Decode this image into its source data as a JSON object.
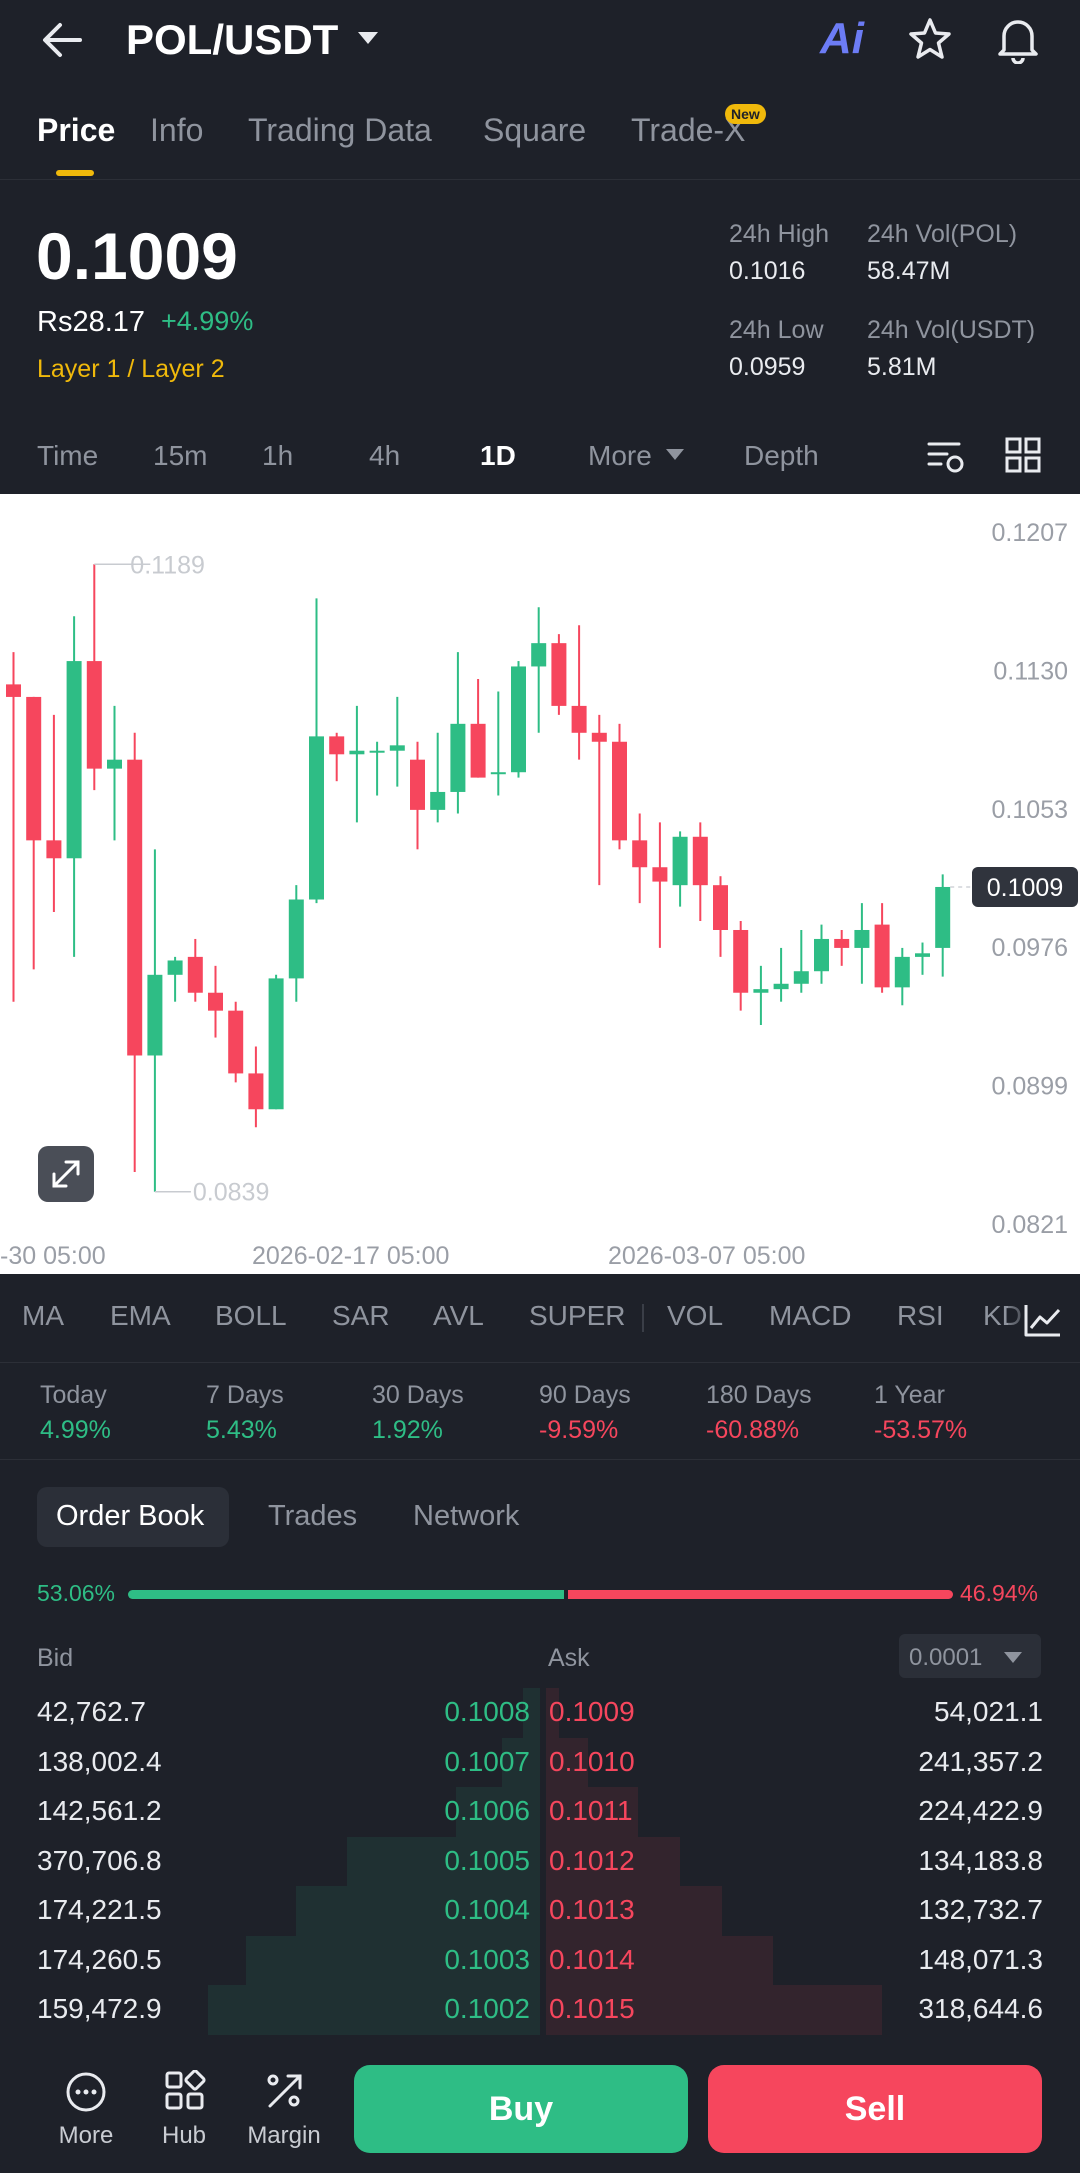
{
  "header": {
    "pair": "POL/USDT",
    "ai_label": "Ai"
  },
  "tabs": [
    {
      "label": "Price"
    },
    {
      "label": "Info"
    },
    {
      "label": "Trading Data"
    },
    {
      "label": "Square"
    },
    {
      "label": "Trade-X",
      "badge": "New"
    }
  ],
  "ticker": {
    "price": "0.1009",
    "fiat_price": "Rs28.17",
    "change": "+4.99%",
    "tag": "Layer 1 / Layer 2",
    "stats": [
      {
        "label": "24h High",
        "value": "0.1016"
      },
      {
        "label": "24h Vol(POL)",
        "value": "58.47M"
      },
      {
        "label": "24h Low",
        "value": "0.0959"
      },
      {
        "label": "24h Vol(USDT)",
        "value": "5.81M"
      }
    ]
  },
  "intervals": [
    "Time",
    "15m",
    "1h",
    "4h",
    "1D",
    "More",
    "Depth"
  ],
  "selected_interval": "1D",
  "chart_data": {
    "type": "candlestick",
    "y_ticks": [
      "0.1207",
      "0.1130",
      "0.1053",
      "0.0976",
      "0.0899",
      "0.0821"
    ],
    "y_range": [
      0.0821,
      0.1207
    ],
    "x_ticks": [
      "-30 05:00",
      "2026-02-17 05:00",
      "2026-03-07 05:00"
    ],
    "current_price_label": "0.1009",
    "max_label": "0.1189",
    "min_label": "0.0839",
    "candles": [
      {
        "o": 0.1122,
        "h": 0.114,
        "l": 0.0945,
        "c": 0.1115
      },
      {
        "o": 0.1115,
        "h": 0.1115,
        "l": 0.0963,
        "c": 0.1035
      },
      {
        "o": 0.1035,
        "h": 0.1105,
        "l": 0.0995,
        "c": 0.1025
      },
      {
        "o": 0.1025,
        "h": 0.116,
        "l": 0.097,
        "c": 0.1135
      },
      {
        "o": 0.1135,
        "h": 0.1189,
        "l": 0.1063,
        "c": 0.1075
      },
      {
        "o": 0.1075,
        "h": 0.111,
        "l": 0.1035,
        "c": 0.108
      },
      {
        "o": 0.108,
        "h": 0.1095,
        "l": 0.085,
        "c": 0.0915
      },
      {
        "o": 0.0915,
        "h": 0.103,
        "l": 0.0839,
        "c": 0.096
      },
      {
        "o": 0.096,
        "h": 0.097,
        "l": 0.0945,
        "c": 0.0968
      },
      {
        "o": 0.097,
        "h": 0.098,
        "l": 0.0945,
        "c": 0.095
      },
      {
        "o": 0.095,
        "h": 0.0965,
        "l": 0.0925,
        "c": 0.094
      },
      {
        "o": 0.094,
        "h": 0.0945,
        "l": 0.09,
        "c": 0.0905
      },
      {
        "o": 0.0905,
        "h": 0.092,
        "l": 0.0875,
        "c": 0.0885
      },
      {
        "o": 0.0885,
        "h": 0.096,
        "l": 0.0885,
        "c": 0.0958
      },
      {
        "o": 0.0958,
        "h": 0.101,
        "l": 0.0945,
        "c": 0.1002
      },
      {
        "o": 0.1002,
        "h": 0.117,
        "l": 0.1,
        "c": 0.1093
      },
      {
        "o": 0.1093,
        "h": 0.1095,
        "l": 0.1068,
        "c": 0.1083
      },
      {
        "o": 0.1083,
        "h": 0.111,
        "l": 0.1045,
        "c": 0.1085
      },
      {
        "o": 0.1085,
        "h": 0.109,
        "l": 0.106,
        "c": 0.1085
      },
      {
        "o": 0.1085,
        "h": 0.1115,
        "l": 0.1065,
        "c": 0.1088
      },
      {
        "o": 0.108,
        "h": 0.109,
        "l": 0.103,
        "c": 0.1052
      },
      {
        "o": 0.1052,
        "h": 0.1095,
        "l": 0.1045,
        "c": 0.1062
      },
      {
        "o": 0.1062,
        "h": 0.114,
        "l": 0.105,
        "c": 0.11
      },
      {
        "o": 0.11,
        "h": 0.1125,
        "l": 0.107,
        "c": 0.107
      },
      {
        "o": 0.1072,
        "h": 0.1118,
        "l": 0.106,
        "c": 0.1073
      },
      {
        "o": 0.1073,
        "h": 0.1135,
        "l": 0.107,
        "c": 0.1132
      },
      {
        "o": 0.1132,
        "h": 0.1165,
        "l": 0.1095,
        "c": 0.1145
      },
      {
        "o": 0.1145,
        "h": 0.115,
        "l": 0.1105,
        "c": 0.111
      },
      {
        "o": 0.111,
        "h": 0.1155,
        "l": 0.108,
        "c": 0.1095
      },
      {
        "o": 0.1095,
        "h": 0.1105,
        "l": 0.101,
        "c": 0.109
      },
      {
        "o": 0.109,
        "h": 0.11,
        "l": 0.103,
        "c": 0.1035
      },
      {
        "o": 0.1035,
        "h": 0.105,
        "l": 0.1,
        "c": 0.102
      },
      {
        "o": 0.102,
        "h": 0.1045,
        "l": 0.0975,
        "c": 0.1012
      },
      {
        "o": 0.101,
        "h": 0.104,
        "l": 0.0998,
        "c": 0.1037
      },
      {
        "o": 0.1037,
        "h": 0.1045,
        "l": 0.099,
        "c": 0.101
      },
      {
        "o": 0.101,
        "h": 0.1015,
        "l": 0.097,
        "c": 0.0985
      },
      {
        "o": 0.0985,
        "h": 0.099,
        "l": 0.094,
        "c": 0.095
      },
      {
        "o": 0.095,
        "h": 0.0965,
        "l": 0.0932,
        "c": 0.0952
      },
      {
        "o": 0.0952,
        "h": 0.0975,
        "l": 0.0945,
        "c": 0.0955
      },
      {
        "o": 0.0955,
        "h": 0.0985,
        "l": 0.095,
        "c": 0.0962
      },
      {
        "o": 0.0962,
        "h": 0.0988,
        "l": 0.0955,
        "c": 0.098
      },
      {
        "o": 0.098,
        "h": 0.0985,
        "l": 0.0965,
        "c": 0.0975
      },
      {
        "o": 0.0975,
        "h": 0.1,
        "l": 0.0955,
        "c": 0.0985
      },
      {
        "o": 0.0988,
        "h": 0.1,
        "l": 0.095,
        "c": 0.0953
      },
      {
        "o": 0.0953,
        "h": 0.0975,
        "l": 0.0943,
        "c": 0.097
      },
      {
        "o": 0.097,
        "h": 0.0978,
        "l": 0.096,
        "c": 0.0972
      },
      {
        "o": 0.0975,
        "h": 0.1016,
        "l": 0.0959,
        "c": 0.1009
      }
    ]
  },
  "indicators": [
    "MA",
    "EMA",
    "BOLL",
    "SAR",
    "AVL",
    "SUPER",
    "VOL",
    "MACD",
    "RSI",
    "KD"
  ],
  "performance": [
    {
      "label": "Today",
      "value": "4.99%",
      "dir": "up"
    },
    {
      "label": "7 Days",
      "value": "5.43%",
      "dir": "up"
    },
    {
      "label": "30 Days",
      "value": "1.92%",
      "dir": "up"
    },
    {
      "label": "90 Days",
      "value": "-9.59%",
      "dir": "down"
    },
    {
      "label": "180 Days",
      "value": "-60.88%",
      "dir": "down"
    },
    {
      "label": "1 Year",
      "value": "-53.57%",
      "dir": "down"
    }
  ],
  "book_tabs": [
    "Order Book",
    "Trades",
    "Network"
  ],
  "ratio": {
    "bid": "53.06%",
    "ask": "46.94%",
    "bid_fraction": 0.5306
  },
  "book_headers": {
    "bid": "Bid",
    "ask": "Ask",
    "precision": "0.0001"
  },
  "orderbook": [
    {
      "bid_qty": "42,762.7",
      "bid_price": "0.1008",
      "ask_price": "0.1009",
      "ask_qty": "54,021.1",
      "bid_depth": 0.04,
      "ask_depth": 0.03
    },
    {
      "bid_qty": "138,002.4",
      "bid_price": "0.1007",
      "ask_price": "0.1010",
      "ask_qty": "241,357.2",
      "bid_depth": 0.09,
      "ask_depth": 0.1
    },
    {
      "bid_qty": "142,561.2",
      "bid_price": "0.1006",
      "ask_price": "0.1011",
      "ask_qty": "224,422.9",
      "bid_depth": 0.2,
      "ask_depth": 0.22
    },
    {
      "bid_qty": "370,706.8",
      "bid_price": "0.1005",
      "ask_price": "0.1012",
      "ask_qty": "134,183.8",
      "bid_depth": 0.46,
      "ask_depth": 0.32
    },
    {
      "bid_qty": "174,221.5",
      "bid_price": "0.1004",
      "ask_price": "0.1013",
      "ask_qty": "132,732.7",
      "bid_depth": 0.58,
      "ask_depth": 0.42
    },
    {
      "bid_qty": "174,260.5",
      "bid_price": "0.1003",
      "ask_price": "0.1014",
      "ask_qty": "148,071.3",
      "bid_depth": 0.7,
      "ask_depth": 0.54
    },
    {
      "bid_qty": "159,472.9",
      "bid_price": "0.1002",
      "ask_price": "0.1015",
      "ask_qty": "318,644.6",
      "bid_depth": 0.79,
      "ask_depth": 0.8
    }
  ],
  "bottom_nav": [
    {
      "label": "More",
      "icon": "more-circle-icon"
    },
    {
      "label": "Hub",
      "icon": "hub-grid-icon"
    },
    {
      "label": "Margin",
      "icon": "margin-icon"
    }
  ],
  "actions": {
    "buy": "Buy",
    "sell": "Sell"
  },
  "colors": {
    "bg": "#1e2129",
    "up": "#2ebd85",
    "down": "#f6465d",
    "accent": "#f0b90b"
  }
}
